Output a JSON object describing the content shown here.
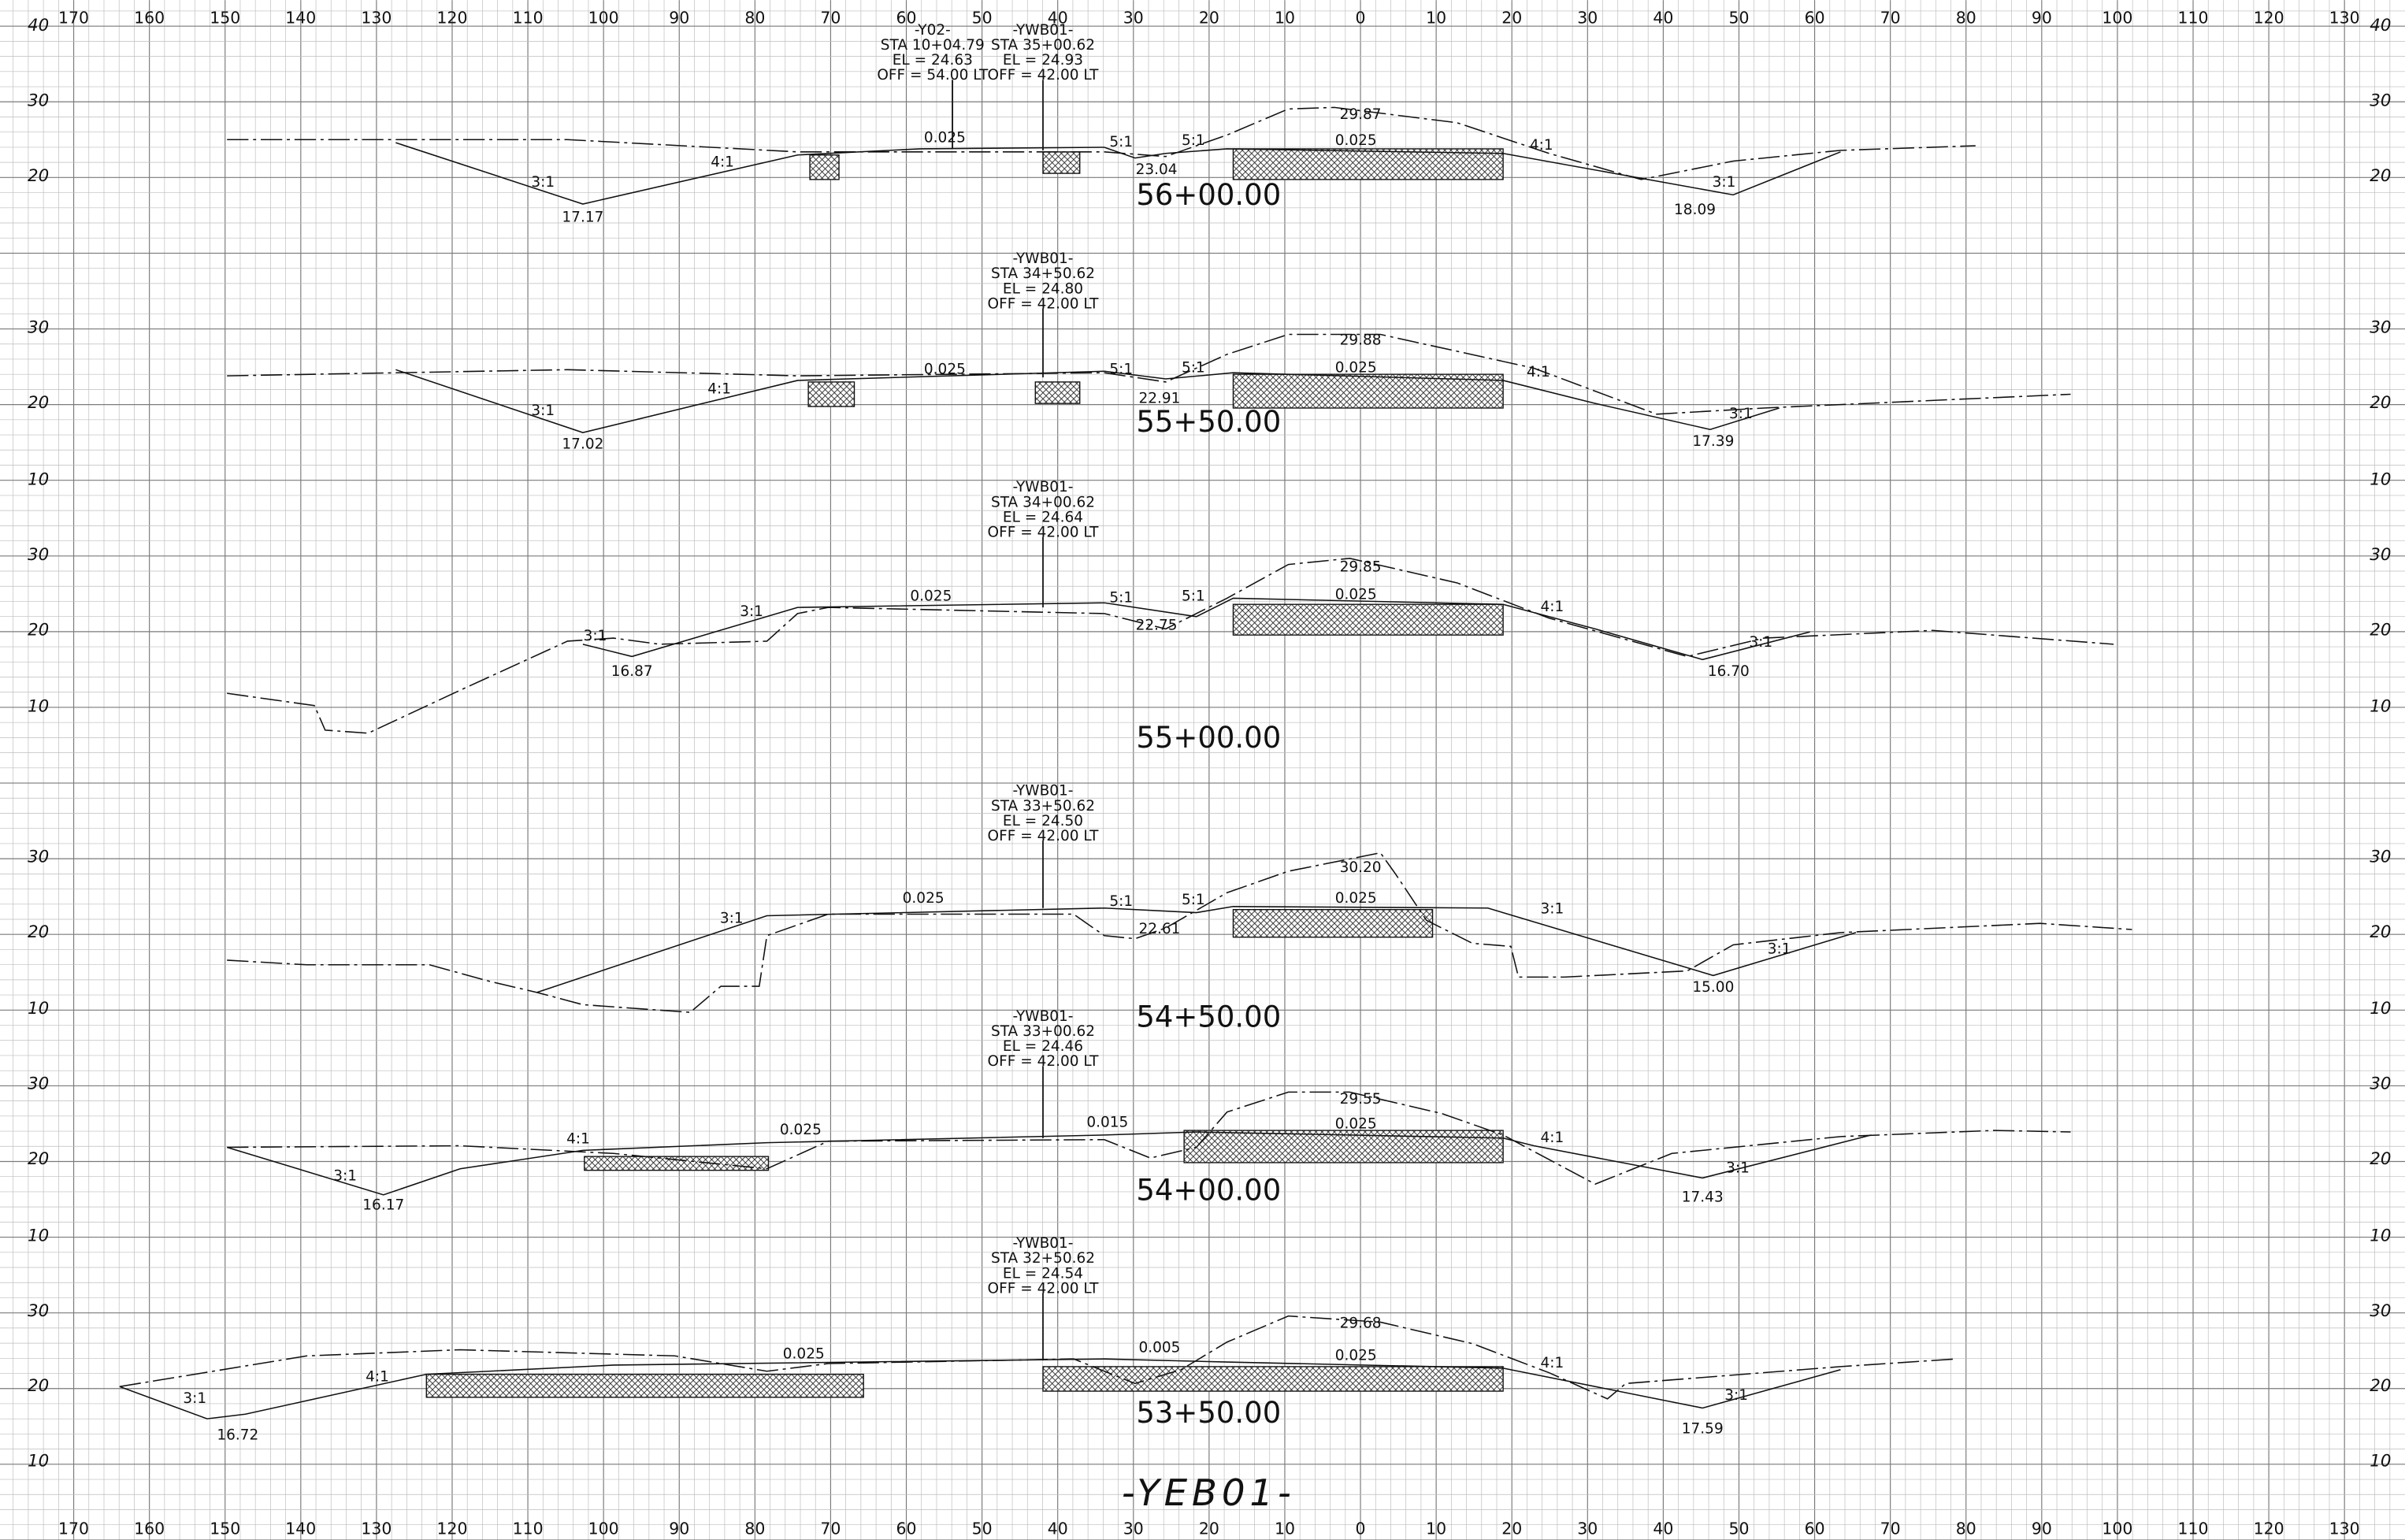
{
  "x_axis": {
    "top": [
      "170",
      "160",
      "150",
      "140",
      "130",
      "120",
      "110",
      "100",
      "90",
      "80",
      "70",
      "60",
      "50",
      "40",
      "30",
      "20",
      "10",
      "0",
      "10",
      "20",
      "30",
      "40",
      "50",
      "60",
      "70",
      "80",
      "90",
      "100",
      "110",
      "120",
      "130"
    ],
    "bottom": [
      "170",
      "160",
      "150",
      "140",
      "130",
      "120",
      "110",
      "100",
      "90",
      "80",
      "70",
      "60",
      "50",
      "40",
      "30",
      "20",
      "10",
      "0",
      "10",
      "20",
      "30",
      "40",
      "50",
      "60",
      "70",
      "80",
      "90",
      "100",
      "110",
      "120",
      "130"
    ]
  },
  "elevation_labels": {
    "left": [
      "40",
      "30",
      "20",
      "30",
      "20",
      "10",
      "30",
      "20",
      "10",
      "30",
      "20",
      "10",
      "30",
      "20",
      "10",
      "30",
      "20",
      "10"
    ],
    "right": [
      "40",
      "30",
      "20",
      "30",
      "20",
      "10",
      "30",
      "20",
      "10",
      "30",
      "20",
      "10",
      "30",
      "20",
      "10",
      "30",
      "20",
      "10"
    ]
  },
  "sections": [
    {
      "station": "56+00.00",
      "callouts": [
        [
          "-Y02-",
          "STA 10+04.79",
          "EL = 24.63",
          "OFF = 54.00 LT"
        ],
        [
          "-YWB01-",
          "STA 35+00.62",
          "EL = 24.93",
          "OFF = 42.00 LT"
        ]
      ],
      "labels": [
        "0.025",
        "5:1",
        "5:1",
        "29.87",
        "0.025",
        "4:1",
        "23.04",
        "3:1",
        "4:1",
        "17.17",
        "3:1",
        "18.09"
      ]
    },
    {
      "station": "55+50.00",
      "callouts": [
        [
          "-YWB01-",
          "STA 34+50.62",
          "EL = 24.80",
          "OFF = 42.00 LT"
        ]
      ],
      "labels": [
        "0.025",
        "5:1",
        "5:1",
        "29.88",
        "0.025",
        "4:1",
        "22.91",
        "3:1",
        "4:1",
        "17.02",
        "3:1",
        "17.39"
      ]
    },
    {
      "station": "55+00.00",
      "callouts": [
        [
          "-YWB01-",
          "STA 34+00.62",
          "EL = 24.64",
          "OFF = 42.00 LT"
        ]
      ],
      "labels": [
        "0.025",
        "3:1",
        "5:1",
        "5:1",
        "29.85",
        "0.025",
        "4:1",
        "3:1",
        "22.75",
        "16.87",
        "3:1",
        "16.70"
      ]
    },
    {
      "station": "54+50.00",
      "callouts": [
        [
          "-YWB01-",
          "STA 33+50.62",
          "EL = 24.50",
          "OFF = 42.00 LT"
        ]
      ],
      "labels": [
        "0.025",
        "3:1",
        "5:1",
        "5:1",
        "30.20",
        "0.025",
        "3:1",
        "22.61",
        "3:1",
        "15.00"
      ]
    },
    {
      "station": "54+00.00",
      "callouts": [
        [
          "-YWB01-",
          "STA 33+00.62",
          "EL = 24.46",
          "OFF = 42.00 LT"
        ]
      ],
      "labels": [
        "4:1",
        "0.025",
        "0.015",
        "29.55",
        "0.025",
        "4:1",
        "3:1",
        "16.17",
        "3:1",
        "17.43"
      ]
    },
    {
      "station": "53+50.00",
      "callouts": [
        [
          "-YWB01-",
          "STA 32+50.62",
          "EL = 24.54",
          "OFF = 42.00 LT"
        ]
      ],
      "labels": [
        "0.025",
        "0.005",
        "29.68",
        "0.025",
        "4:1",
        "4:1",
        "3:1",
        "16.72",
        "3:1",
        "17.59"
      ]
    }
  ],
  "footer": "-YEB01-"
}
